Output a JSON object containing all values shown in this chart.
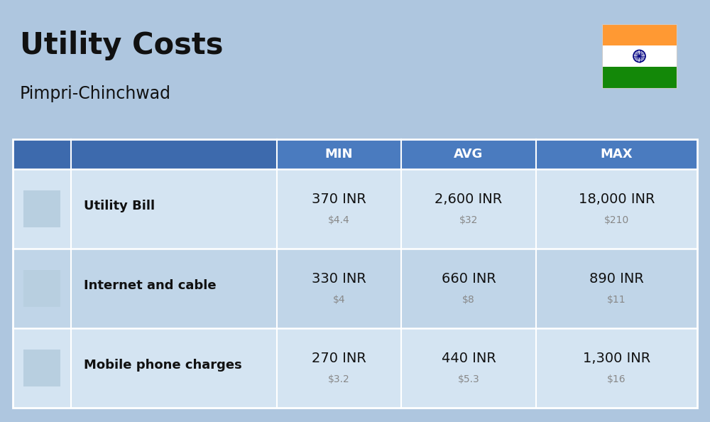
{
  "title": "Utility Costs",
  "subtitle": "Pimpri-Chinchwad",
  "bg_color": "#aec6df",
  "header_bg": "#4a7bbf",
  "header_left_bg": "#3d6aad",
  "header_text_color": "#ffffff",
  "row_bg_even": "#d4e4f2",
  "row_bg_odd": "#c0d5e8",
  "divider_color": "#ffffff",
  "col_headers": [
    "MIN",
    "AVG",
    "MAX"
  ],
  "rows": [
    {
      "label": "Utility Bill",
      "min_inr": "370 INR",
      "min_usd": "$4.4",
      "avg_inr": "2,600 INR",
      "avg_usd": "$32",
      "max_inr": "18,000 INR",
      "max_usd": "$210"
    },
    {
      "label": "Internet and cable",
      "min_inr": "330 INR",
      "min_usd": "$4",
      "avg_inr": "660 INR",
      "avg_usd": "$8",
      "max_inr": "890 INR",
      "max_usd": "$11"
    },
    {
      "label": "Mobile phone charges",
      "min_inr": "270 INR",
      "min_usd": "$3.2",
      "avg_inr": "440 INR",
      "avg_usd": "$5.3",
      "max_inr": "1,300 INR",
      "max_usd": "$16"
    }
  ],
  "india_flag_colors": [
    "#ff9933",
    "#ffffff",
    "#138808"
  ],
  "title_fontsize": 30,
  "subtitle_fontsize": 17,
  "header_fontsize": 13,
  "label_fontsize": 13,
  "inr_fontsize": 14,
  "usd_fontsize": 10
}
